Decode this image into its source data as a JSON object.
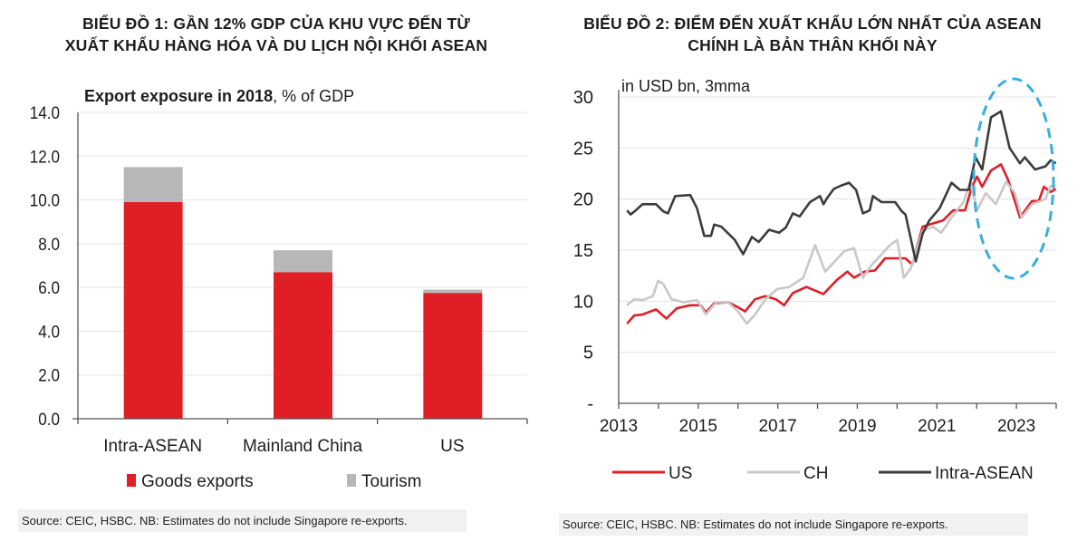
{
  "left": {
    "title_line1": "BIỂU ĐỒ 1: GẦN 12% GDP CỦA KHU VỰC ĐẾN TỪ",
    "title_line2": "XUẤT KHẨU HÀNG HÓA VÀ DU LỊCH NỘI KHỐI ASEAN",
    "source": "Source: CEIC, HSBC. NB: Estimates do not include Singapore re-exports."
  },
  "right": {
    "title_line1": "BIỂU ĐỒ 2: ĐIỂM ĐẾN XUẤT KHẨU LỚN NHẤT CỦA ASEAN",
    "title_line2": "CHÍNH LÀ BẢN THÂN KHỐI NÀY",
    "source": "Source: CEIC, HSBC. NB: Estimates do not include Singapore re-exports."
  },
  "chart_data": [
    {
      "type": "bar",
      "stacked": true,
      "title_bold": "Export exposure in 2018",
      "title_rest": ", % of GDP",
      "categories": [
        "Intra-ASEAN",
        "Mainland China",
        "US"
      ],
      "series": [
        {
          "name": "Goods exports",
          "color": "#e01e26",
          "values": [
            9.9,
            6.7,
            5.75
          ]
        },
        {
          "name": "Tourism",
          "color": "#b7b7b7",
          "values": [
            1.6,
            1.0,
            0.15
          ]
        }
      ],
      "ylim": [
        0,
        14
      ],
      "yticks": [
        "0.0",
        "2.0",
        "4.0",
        "6.0",
        "8.0",
        "10.0",
        "12.0",
        "14.0"
      ],
      "grid": true,
      "legend": "bottom"
    },
    {
      "type": "line",
      "title": "in USD bn, 3mma",
      "xlim": [
        2013,
        2024
      ],
      "ylim": [
        0,
        30
      ],
      "xticks": [
        "2013",
        "2015",
        "2017",
        "2019",
        "2021",
        "2023"
      ],
      "yticks": [
        "-",
        "5",
        "10",
        "15",
        "20",
        "25",
        "30"
      ],
      "grid": true,
      "legend": "bottom",
      "highlight_color": "#3aaee0",
      "series": [
        {
          "name": "US",
          "color": "#e01e26",
          "x": [
            2013.21,
            2013.39,
            2013.6,
            2013.94,
            2014.2,
            2014.46,
            2014.8,
            2015.06,
            2015.19,
            2015.4,
            2015.75,
            2015.96,
            2016.18,
            2016.43,
            2016.69,
            2016.95,
            2017.16,
            2017.38,
            2017.72,
            2018.15,
            2018.49,
            2018.75,
            2018.92,
            2019.18,
            2019.44,
            2019.7,
            2019.95,
            2020.21,
            2020.38,
            2020.64,
            2020.81,
            2021.15,
            2021.41,
            2021.71,
            2021.88,
            2022.01,
            2022.14,
            2022.36,
            2022.61,
            2022.79,
            2023.09,
            2023.39,
            2023.56,
            2023.69,
            2023.86,
            2023.99
          ],
          "y": [
            7.8,
            8.6,
            8.7,
            9.2,
            8.3,
            9.3,
            9.6,
            9.6,
            8.9,
            9.8,
            9.9,
            9.5,
            9.0,
            10.2,
            10.5,
            10.2,
            9.6,
            10.8,
            11.4,
            10.7,
            12.1,
            12.9,
            12.3,
            12.9,
            13.0,
            14.2,
            14.2,
            14.2,
            13.6,
            17.3,
            17.5,
            17.9,
            18.9,
            18.9,
            21.2,
            22.2,
            21.2,
            22.8,
            23.4,
            21.9,
            18.2,
            19.8,
            19.8,
            21.2,
            20.7,
            21.0
          ]
        },
        {
          "name": "CH",
          "color": "#c8c8c8",
          "x": [
            2013.21,
            2013.39,
            2013.6,
            2013.86,
            2013.99,
            2014.12,
            2014.33,
            2014.63,
            2014.97,
            2015.19,
            2015.45,
            2015.75,
            2016.0,
            2016.22,
            2016.43,
            2016.69,
            2016.99,
            2017.29,
            2017.64,
            2017.94,
            2018.19,
            2018.41,
            2018.67,
            2018.92,
            2019.14,
            2019.35,
            2019.61,
            2019.82,
            2020.0,
            2020.17,
            2020.34,
            2020.64,
            2020.9,
            2021.11,
            2021.37,
            2021.67,
            2021.84,
            2022.01,
            2022.23,
            2022.48,
            2022.74,
            2022.96,
            2023.13,
            2023.39,
            2023.73,
            2023.86,
            2023.99
          ],
          "y": [
            9.6,
            10.2,
            10.1,
            10.5,
            12.0,
            11.7,
            10.2,
            9.9,
            10.1,
            8.7,
            9.9,
            9.9,
            9.0,
            7.8,
            8.7,
            10.2,
            11.2,
            11.4,
            12.3,
            15.5,
            12.9,
            13.8,
            14.9,
            15.2,
            12.3,
            13.5,
            14.6,
            15.5,
            16.0,
            12.3,
            13.2,
            16.9,
            17.3,
            16.7,
            18.2,
            19.7,
            21.7,
            18.9,
            20.6,
            19.5,
            21.7,
            20.6,
            18.2,
            19.5,
            20.0,
            21.3,
            21.3
          ]
        },
        {
          "name": "Intra-ASEAN",
          "color": "#3c3c3c",
          "x": [
            2013.21,
            2013.3,
            2013.43,
            2013.6,
            2013.94,
            2014.12,
            2014.24,
            2014.42,
            2014.8,
            2014.97,
            2015.15,
            2015.32,
            2015.4,
            2015.58,
            2015.92,
            2016.13,
            2016.35,
            2016.52,
            2016.78,
            2017.03,
            2017.2,
            2017.38,
            2017.55,
            2017.81,
            2018.06,
            2018.15,
            2018.24,
            2018.41,
            2018.58,
            2018.79,
            2018.97,
            2019.14,
            2019.31,
            2019.39,
            2019.61,
            2019.95,
            2020.12,
            2020.21,
            2020.47,
            2020.64,
            2020.81,
            2021.07,
            2021.37,
            2021.58,
            2021.8,
            2021.97,
            2022.14,
            2022.36,
            2022.61,
            2022.83,
            2023.09,
            2023.21,
            2023.47,
            2023.73,
            2023.86,
            2023.99
          ],
          "y": [
            18.9,
            18.5,
            18.9,
            19.5,
            19.5,
            18.8,
            18.6,
            20.3,
            20.4,
            19.1,
            16.4,
            16.4,
            17.5,
            17.3,
            16.0,
            14.6,
            16.3,
            15.8,
            17.0,
            16.7,
            17.2,
            18.6,
            18.3,
            19.7,
            20.3,
            19.5,
            20.1,
            21.0,
            21.3,
            21.6,
            20.9,
            18.6,
            18.9,
            20.3,
            19.7,
            19.7,
            18.8,
            18.5,
            13.9,
            16.6,
            17.9,
            19.1,
            21.6,
            20.9,
            20.9,
            24.1,
            22.9,
            28.0,
            28.6,
            25.0,
            23.5,
            24.1,
            22.9,
            23.2,
            23.8,
            23.5
          ]
        }
      ]
    }
  ]
}
